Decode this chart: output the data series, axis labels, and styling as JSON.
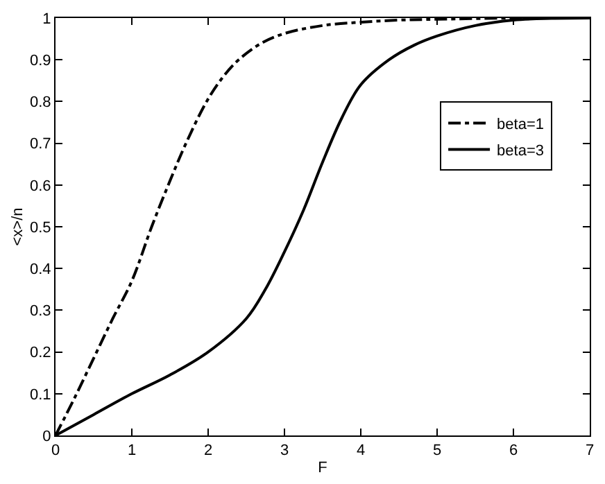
{
  "chart_data": {
    "type": "line",
    "xlabel": "F",
    "ylabel": "<x>/n",
    "xlim": [
      0,
      7
    ],
    "xticks": [
      0,
      1,
      2,
      3,
      4,
      5,
      6,
      7
    ],
    "ylim": [
      0,
      1
    ],
    "yticks": [
      0,
      0.1,
      0.2,
      0.3,
      0.4,
      0.5,
      0.6,
      0.7,
      0.8,
      0.9,
      1
    ],
    "legend": "top right",
    "marker": "none",
    "series": [
      {
        "name": "beta=1",
        "color": "#000000",
        "line_style": "dashdot",
        "x": [
          0,
          0.25,
          0.5,
          0.75,
          1,
          1.26,
          1.5,
          1.71,
          1.98,
          2.2,
          2.4,
          2.7,
          3,
          3.5,
          4,
          4.5,
          5,
          6,
          7
        ],
        "values": [
          0,
          0.09,
          0.185,
          0.28,
          0.37,
          0.5,
          0.61,
          0.7,
          0.8,
          0.86,
          0.9,
          0.94,
          0.963,
          0.982,
          0.99,
          0.995,
          0.997,
          1,
          1
        ]
      },
      {
        "name": "beta=3",
        "color": "#000000",
        "line_style": "solid",
        "x": [
          0,
          0.5,
          1,
          1.5,
          2,
          2.5,
          2.75,
          3,
          3.25,
          3.5,
          3.75,
          4,
          4.37,
          4.7,
          5,
          5.5,
          6,
          6.5,
          7
        ],
        "values": [
          0,
          0.05,
          0.1,
          0.145,
          0.2,
          0.28,
          0.35,
          0.44,
          0.54,
          0.655,
          0.76,
          0.84,
          0.9,
          0.935,
          0.957,
          0.982,
          0.995,
          0.999,
          1
        ]
      }
    ]
  }
}
